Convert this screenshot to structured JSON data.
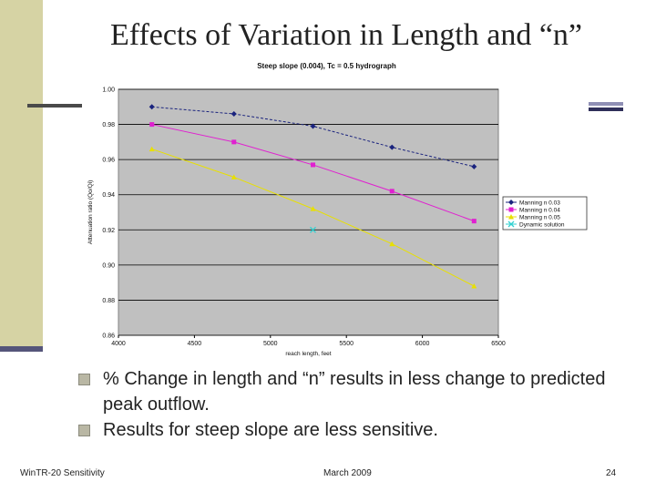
{
  "slide": {
    "title": "Effects of Variation in Length and “n”",
    "bullets": [
      "% Change in length and “n” results in less change to predicted peak outflow.",
      "Results for steep slope are less sensitive."
    ],
    "footer": {
      "left": "WinTR-20 Sensitivity",
      "center": "March 2009",
      "right": "24"
    }
  },
  "chart_data": {
    "type": "line",
    "title": "Steep slope (0.004), Tc = 0.5 hydrograph",
    "xlabel": "reach length, feet",
    "ylabel": "Attenuation ratio (Qo/Qi)",
    "xlim": [
      4000,
      6500
    ],
    "ylim": [
      0.86,
      1.0
    ],
    "xticks": [
      4000,
      4500,
      5000,
      5500,
      6000,
      6500
    ],
    "xtick_labels": [
      "4000",
      "4500",
      "5000",
      "5500",
      "6000",
      "6500"
    ],
    "yticks": [
      0.86,
      0.88,
      0.9,
      0.92,
      0.94,
      0.96,
      0.98,
      1.0
    ],
    "ytick_labels": [
      "0.86",
      "0.88",
      "0.90",
      "0.92",
      "0.94",
      "0.96",
      "0.98",
      "1.00"
    ],
    "grid": true,
    "legend_position": "right",
    "series": [
      {
        "name": "Manning n 0.03",
        "color": "#1a237e",
        "marker": "diamond",
        "x": [
          4220,
          4760,
          5280,
          5800,
          6340
        ],
        "y": [
          0.99,
          0.986,
          0.979,
          0.967,
          0.956
        ]
      },
      {
        "name": "Manning n 0.04",
        "color": "#e020d0",
        "marker": "square",
        "x": [
          4220,
          4760,
          5280,
          5800,
          6340
        ],
        "y": [
          0.98,
          0.97,
          0.957,
          0.942,
          0.925
        ]
      },
      {
        "name": "Manning n 0.05",
        "color": "#e8e000",
        "marker": "triangle",
        "x": [
          4220,
          4760,
          5280,
          5800,
          6340
        ],
        "y": [
          0.966,
          0.95,
          0.932,
          0.912,
          0.888
        ]
      },
      {
        "name": "Dynamic solution",
        "color": "#30d0d0",
        "marker": "x",
        "x": [
          5280
        ],
        "y": [
          0.92
        ]
      }
    ],
    "background": "#c0c0c0"
  }
}
